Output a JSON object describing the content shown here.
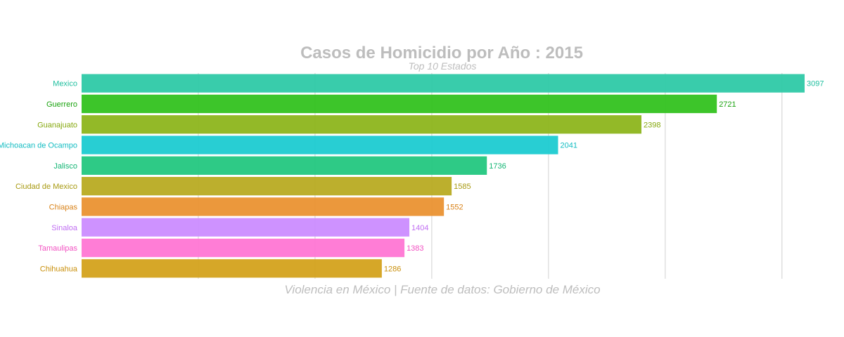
{
  "chart_data": {
    "type": "bar",
    "orientation": "horizontal",
    "title": "Casos de Homicidio por Año : 2015",
    "subtitle": "Top 10 Estados",
    "caption": "Violencia en México | Fuente de datos: Gobierno de México",
    "categories": [
      "Mexico",
      "Guerrero",
      "Guanajuato",
      "Michoacan de Ocampo",
      "Jalisco",
      "Ciudad de Mexico",
      "Chiapas",
      "Sinaloa",
      "Tamaulipas",
      "Chihuahua"
    ],
    "values": [
      3097,
      2721,
      2398,
      2041,
      1736,
      1585,
      1552,
      1404,
      1383,
      1286
    ],
    "colors": [
      "#2ec9a6",
      "#33c21f",
      "#8db51c",
      "#1ccbd1",
      "#23c77f",
      "#b8ab22",
      "#ea9231",
      "#cb8cff",
      "#ff76d4",
      "#d4a21c"
    ],
    "label_colors": [
      "#1fbf9f",
      "#1aa30f",
      "#86a80f",
      "#12bcc2",
      "#12b573",
      "#a89a12",
      "#d98218",
      "#c06ef2",
      "#f251c2",
      "#c98f0a"
    ],
    "xlim": [
      0,
      3100
    ],
    "grid": true,
    "legend": "none",
    "xlabel": "",
    "ylabel": ""
  }
}
